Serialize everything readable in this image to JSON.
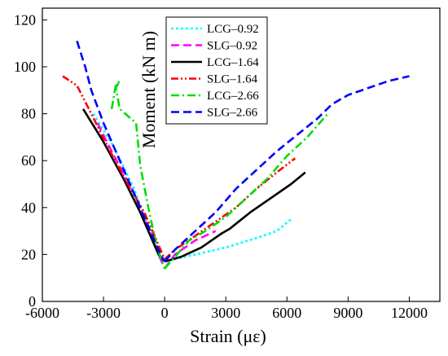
{
  "chart_data": {
    "type": "line",
    "xlabel": "Strain (με)",
    "ylabel": "Moment (kN m)",
    "xlim": [
      -6000,
      13500
    ],
    "ylim": [
      0,
      125
    ],
    "xticks": [
      -6000,
      -3000,
      0,
      3000,
      6000,
      9000,
      12000
    ],
    "xtick_labels": [
      "-6000",
      "-3000",
      "0",
      "3000",
      "6000",
      "9000",
      "12000"
    ],
    "yticks": [
      0,
      20,
      40,
      60,
      80,
      100,
      120
    ],
    "ytick_labels": [
      "0",
      "20",
      "40",
      "60",
      "80",
      "100",
      "120"
    ],
    "grid": false,
    "legend_position": "top-center",
    "series": [
      {
        "name": "LCG–0.92",
        "color": "#00ffff",
        "dash": "dotted",
        "branches": [
          {
            "x": [
              -3500,
              -2500,
              -1500,
              -800,
              -400,
              -100,
              0
            ],
            "y": [
              80,
              66,
              48,
              32,
              22,
              18,
              17
            ]
          },
          {
            "x": [
              0,
              500,
              1500,
              3000,
              4500,
              5500,
              6200
            ],
            "y": [
              17,
              18,
              20,
              23,
              27,
              30,
              35
            ]
          }
        ]
      },
      {
        "name": "SLG–0.92",
        "color": "#ff00ff",
        "dash": "dashed",
        "branches": [
          {
            "x": [
              -3300,
              -2600,
              -1500,
              -800,
              -300,
              0
            ],
            "y": [
              76,
              64,
              46,
              32,
              20,
              14
            ]
          },
          {
            "x": [
              0,
              500,
              1500,
              2500
            ],
            "y": [
              14,
              20,
              26,
              30
            ]
          }
        ]
      },
      {
        "name": "LCG–1.64",
        "color": "#000000",
        "dash": "solid",
        "branches": [
          {
            "x": [
              -4000,
              -3000,
              -2000,
              -1200,
              -600,
              -300,
              0
            ],
            "y": [
              82,
              68,
              52,
              38,
              26,
              20,
              17
            ]
          },
          {
            "x": [
              0,
              800,
              1800,
              2800,
              3200,
              4200,
              5200,
              6200,
              6900
            ],
            "y": [
              17,
              19,
              23,
              29,
              31,
              38,
              44,
              50,
              55
            ]
          }
        ]
      },
      {
        "name": "SLG–1.64",
        "color": "#ff0000",
        "dash": "dashdotdot",
        "branches": [
          {
            "x": [
              -5000,
              -4300,
              -3600,
              -2800,
              -1800,
              -1000,
              -400,
              0
            ],
            "y": [
              96,
              92,
              80,
              66,
              50,
              38,
              26,
              18
            ]
          },
          {
            "x": [
              0,
              500,
              1500,
              2500,
              3500,
              4500,
              5500,
              6400
            ],
            "y": [
              18,
              22,
              28,
              34,
              40,
              48,
              55,
              61
            ]
          }
        ]
      },
      {
        "name": "LCG–2.66",
        "color": "#00dd00",
        "dash": "dashdot",
        "branches": [
          {
            "x": [
              -2600,
              -2400,
              -2200,
              -2400,
              -2200,
              -1800,
              -1400,
              -1200,
              -800,
              -400,
              -100,
              0
            ],
            "y": [
              82,
              92,
              94,
              91,
              82,
              79,
              76,
              58,
              40,
              24,
              16,
              14
            ]
          },
          {
            "x": [
              0,
              400,
              1200,
              2000,
              3000,
              4000,
              5000,
              6000,
              7000,
              8000
            ],
            "y": [
              14,
              18,
              26,
              30,
              36,
              44,
              52,
              62,
              70,
              80
            ]
          }
        ]
      },
      {
        "name": "SLG–2.66",
        "color": "#0000ff",
        "dash": "dashed",
        "branches": [
          {
            "x": [
              -4300,
              -3900,
              -3600,
              -3000,
              -2200,
              -1400,
              -700,
              -200,
              0
            ],
            "y": [
              111,
              100,
              90,
              76,
              60,
              44,
              30,
              20,
              17
            ]
          },
          {
            "x": [
              0,
              500,
              1500,
              2500,
              3500,
              4500,
              5500,
              6500,
              7500,
              8200,
              9000,
              10000,
              11000,
              12000
            ],
            "y": [
              17,
              22,
              30,
              38,
              48,
              56,
              64,
              71,
              78,
              84,
              88,
              91,
              94,
              96
            ]
          }
        ]
      }
    ]
  }
}
